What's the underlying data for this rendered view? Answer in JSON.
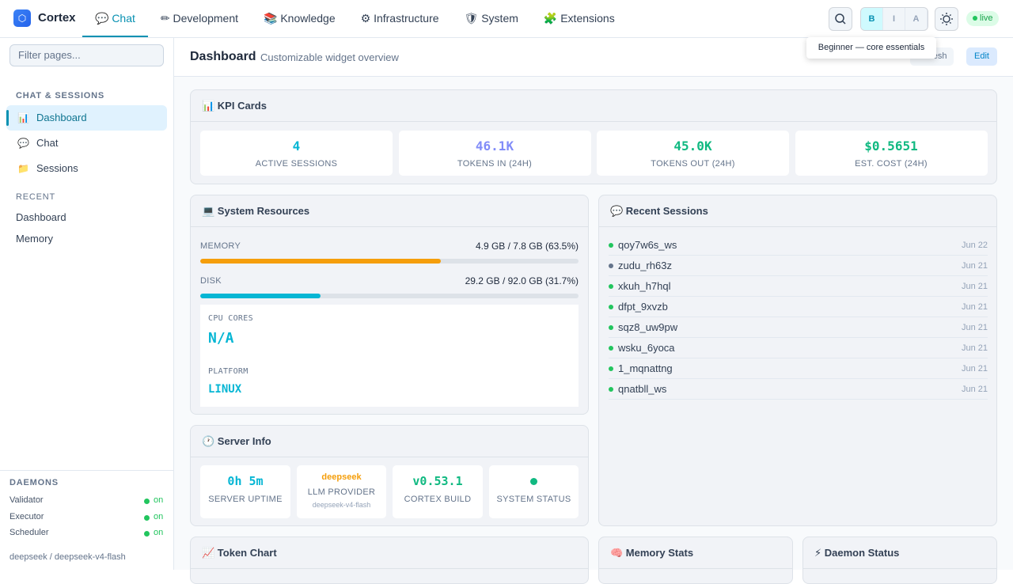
{
  "topbar": {
    "brand": "Cortex",
    "nav": [
      "💬 Chat",
      "✏ Development",
      "📚 Knowledge",
      "⚙ Infrastructure",
      "🛡 System",
      "🧩 Extensions"
    ],
    "active_nav": 0,
    "levels": [
      "B",
      "I",
      "A"
    ],
    "active_level": 0,
    "status": "live",
    "tooltip": "Beginner — core essentials"
  },
  "sidebar": {
    "filter_placeholder": "Filter pages...",
    "section": "CHAT & SESSIONS",
    "items": [
      {
        "icon": "📊",
        "label": "Dashboard"
      },
      {
        "icon": "💬",
        "label": "Chat"
      },
      {
        "icon": "📁",
        "label": "Sessions"
      }
    ],
    "active_item": 0,
    "recent_label": "RECENT",
    "recent": [
      "Dashboard",
      "Memory"
    ],
    "daemons_label": "DAEMONS",
    "daemons": [
      {
        "name": "Validator",
        "state": "on"
      },
      {
        "name": "Executor",
        "state": "on"
      },
      {
        "name": "Scheduler",
        "state": "on"
      }
    ],
    "footer": "deepseek / deepseek-v4-flash"
  },
  "page": {
    "title": "Dashboard",
    "subtitle": "Customizable widget overview",
    "buttons": [
      "Refresh",
      "Edit"
    ]
  },
  "kpi": {
    "title": "📊 KPI Cards",
    "cards": [
      {
        "value": "4",
        "label": "ACTIVE SESSIONS",
        "color": "#06b6d4"
      },
      {
        "value": "46.1K",
        "label": "TOKENS IN (24H)",
        "color": "#818cf8"
      },
      {
        "value": "45.0K",
        "label": "TOKENS OUT (24H)",
        "color": "#10b981"
      },
      {
        "value": "$0.5651",
        "label": "EST. COST (24H)",
        "color": "#10b981"
      }
    ]
  },
  "resources": {
    "title": "💻 System Resources",
    "memory": {
      "label": "MEMORY",
      "text": "4.9 GB / 7.8 GB (63.5%)",
      "percent": 63.5,
      "color": "#f59e0b"
    },
    "disk": {
      "label": "DISK",
      "text": "29.2 GB / 92.0 GB (31.7%)",
      "percent": 31.7,
      "color": "#06b6d4"
    },
    "cpu_label": "CPU CORES",
    "cpu_value": "N/A",
    "platform_label": "PLATFORM",
    "platform_value": "LINUX"
  },
  "sessions": {
    "title": "💬 Recent Sessions",
    "rows": [
      {
        "name": "qoy7w6s_ws",
        "date": "Jun 22",
        "dot": "#22c55e"
      },
      {
        "name": "zudu_rh63z",
        "date": "Jun 21",
        "dot": "#64748b"
      },
      {
        "name": "xkuh_h7hql",
        "date": "Jun 21",
        "dot": "#22c55e"
      },
      {
        "name": "dfpt_9xvzb",
        "date": "Jun 21",
        "dot": "#22c55e"
      },
      {
        "name": "sqz8_uw9pw",
        "date": "Jun 21",
        "dot": "#22c55e"
      },
      {
        "name": "wsku_6yoca",
        "date": "Jun 21",
        "dot": "#22c55e"
      },
      {
        "name": "1_mqnattng",
        "date": "Jun 21",
        "dot": "#22c55e"
      },
      {
        "name": "qnatbll_ws",
        "date": "Jun 21",
        "dot": "#22c55e"
      }
    ]
  },
  "server": {
    "title": "🕐 Server Info",
    "uptime": "0h 5m",
    "uptime_label": "SERVER UPTIME",
    "provider": "deepseek",
    "provider_label": "LLM PROVIDER",
    "provider_model": "deepseek-v4-flash",
    "build": "v0.53.1",
    "build_label": "CORTEX BUILD",
    "status_label": "SYSTEM STATUS"
  },
  "bottom": [
    "📈 Token Chart",
    "🧠 Memory Stats",
    "⚡ Daemon Status"
  ]
}
